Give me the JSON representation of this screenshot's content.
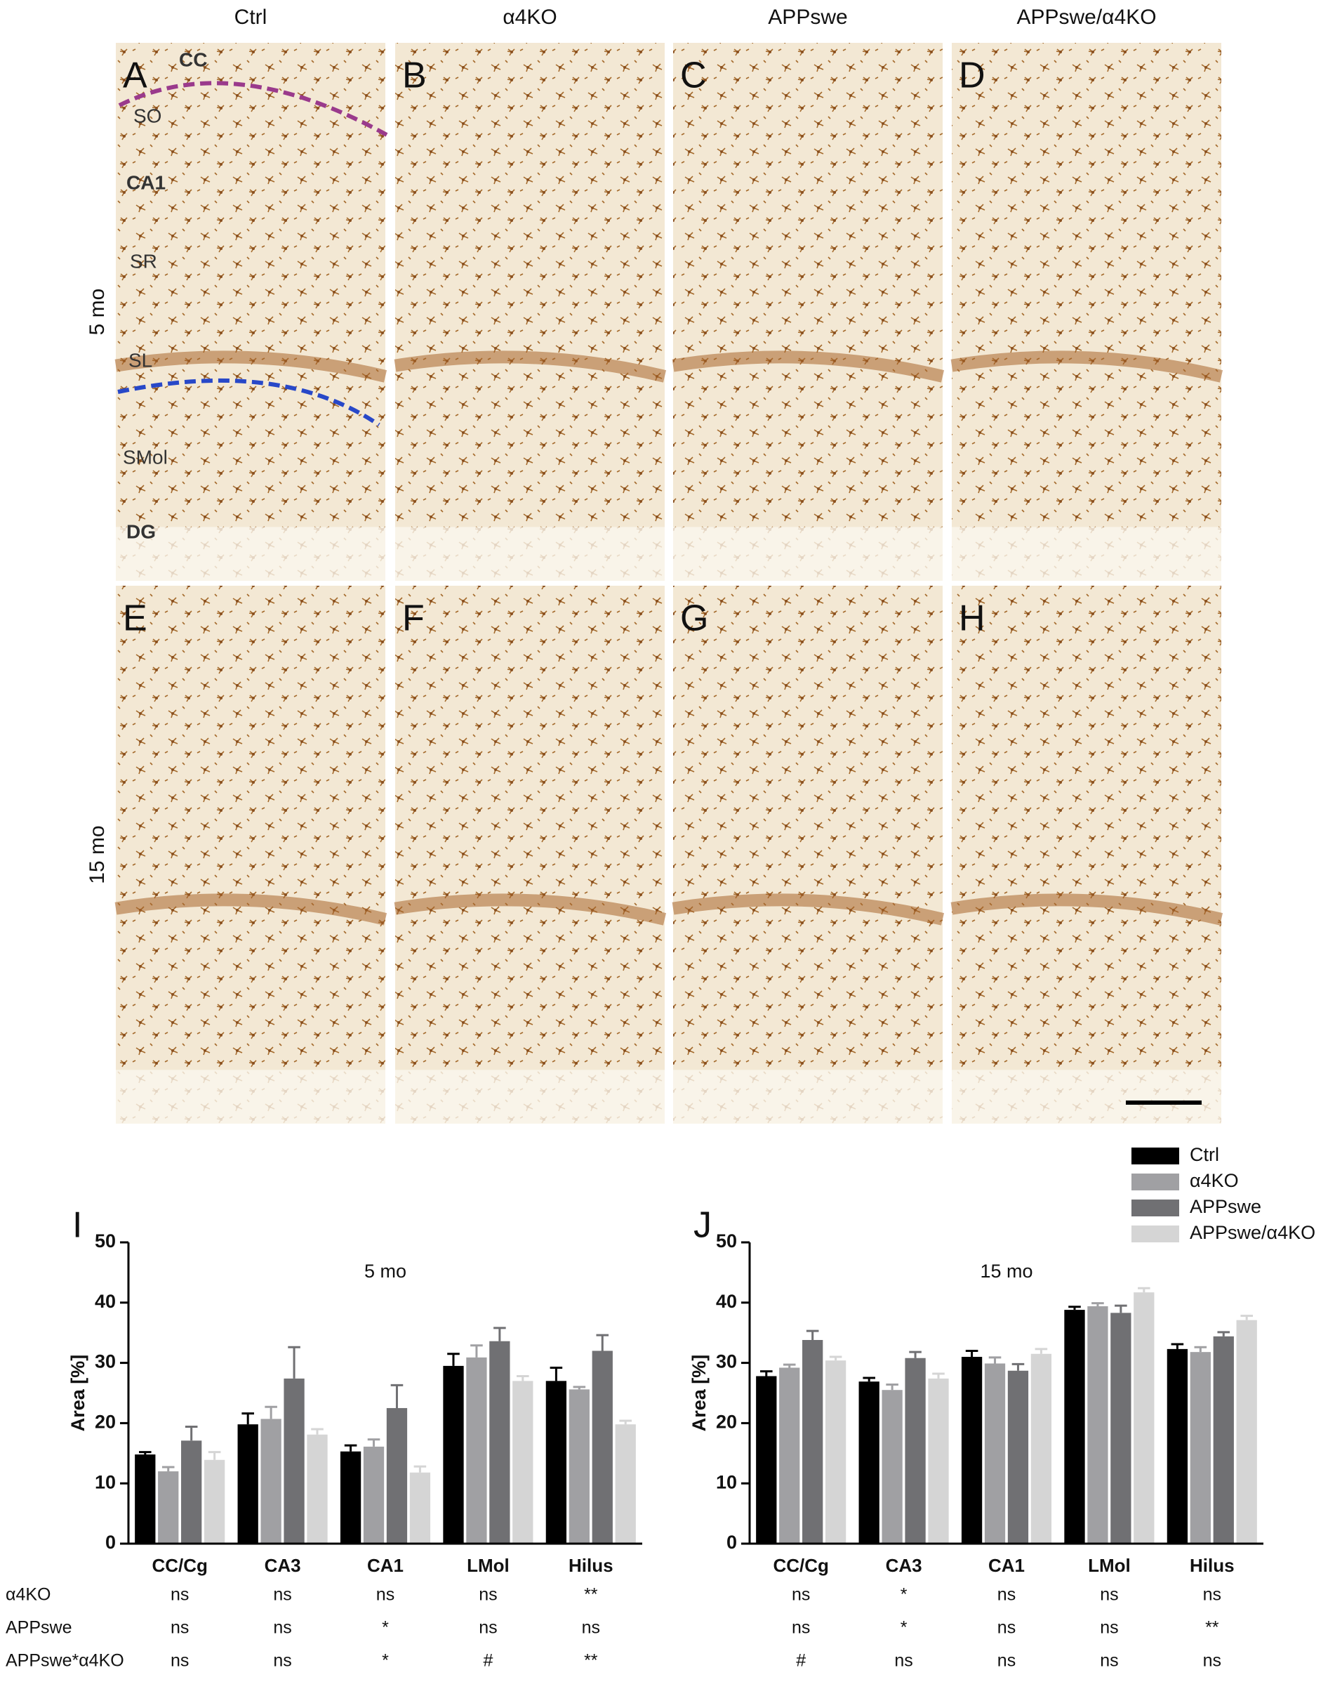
{
  "micrographs": {
    "columns": [
      "Ctrl",
      "α4KO",
      "APPswe",
      "APPswe/α4KO"
    ],
    "rows": [
      "5 mo",
      "15 mo"
    ],
    "panels": [
      "A",
      "B",
      "C",
      "D",
      "E",
      "F",
      "G",
      "H"
    ],
    "regions": [
      "CC",
      "SO",
      "CA1",
      "SR",
      "SL",
      "SMol",
      "DG"
    ]
  },
  "significance_rows": [
    "α4KO",
    "APPswe",
    "APPswe*α4KO"
  ],
  "chart_data": [
    {
      "type": "bar",
      "panel": "I",
      "subtitle": "5 mo",
      "y_label": "Area [%]",
      "categories": [
        "CC/Cg",
        "CA3",
        "CA1",
        "LMol",
        "Hilus"
      ],
      "ylim": [
        0,
        50
      ],
      "yticks": [
        0,
        10,
        20,
        30,
        40,
        50
      ],
      "series": [
        {
          "name": "Ctrl",
          "color": "#000000",
          "values": [
            14.8,
            19.8,
            15.3,
            29.5,
            27.0
          ],
          "errors": [
            0.4,
            1.8,
            1.0,
            2.0,
            2.2
          ]
        },
        {
          "name": "α4KO",
          "color": "#a0a0a3",
          "values": [
            12.0,
            20.7,
            16.1,
            30.9,
            25.6
          ],
          "errors": [
            0.7,
            2.0,
            1.2,
            2.0,
            0.4
          ]
        },
        {
          "name": "APPswe",
          "color": "#707073",
          "values": [
            17.1,
            27.4,
            22.5,
            33.6,
            32.0
          ],
          "errors": [
            2.3,
            5.2,
            3.8,
            2.2,
            2.6
          ]
        },
        {
          "name": "APPswe/α4KO",
          "color": "#d5d5d5",
          "values": [
            13.9,
            18.1,
            11.8,
            27.0,
            19.8
          ],
          "errors": [
            1.3,
            0.9,
            1.0,
            0.8,
            0.6
          ]
        }
      ],
      "significance": [
        [
          "ns",
          "ns",
          "ns",
          "ns",
          "**"
        ],
        [
          "ns",
          "ns",
          "*",
          "ns",
          "ns"
        ],
        [
          "ns",
          "ns",
          "*",
          "#",
          "**"
        ]
      ]
    },
    {
      "type": "bar",
      "panel": "J",
      "subtitle": "15 mo",
      "y_label": "Area [%]",
      "categories": [
        "CC/Cg",
        "CA3",
        "CA1",
        "LMol",
        "Hilus"
      ],
      "ylim": [
        0,
        50
      ],
      "yticks": [
        0,
        10,
        20,
        30,
        40,
        50
      ],
      "series": [
        {
          "color": "#000000",
          "values": [
            27.8,
            26.9,
            31.0,
            38.8,
            32.3
          ],
          "errors": [
            0.8,
            0.6,
            1.0,
            0.5,
            0.8
          ]
        },
        {
          "color": "#a0a0a3",
          "values": [
            29.2,
            25.5,
            29.9,
            39.4,
            31.8
          ],
          "errors": [
            0.5,
            0.9,
            1.0,
            0.5,
            0.8
          ]
        },
        {
          "color": "#707073",
          "values": [
            33.8,
            30.8,
            28.7,
            38.3,
            34.4
          ],
          "errors": [
            1.5,
            1.0,
            1.1,
            1.2,
            0.7
          ]
        },
        {
          "color": "#d5d5d5",
          "values": [
            30.4,
            27.4,
            31.5,
            41.7,
            37.1
          ],
          "errors": [
            0.6,
            0.8,
            0.8,
            0.7,
            0.7
          ]
        }
      ],
      "significance": [
        [
          "ns",
          "*",
          "ns",
          "ns",
          "ns"
        ],
        [
          "ns",
          "*",
          "ns",
          "ns",
          "**"
        ],
        [
          "#",
          "ns",
          "ns",
          "ns",
          "ns"
        ]
      ]
    }
  ]
}
